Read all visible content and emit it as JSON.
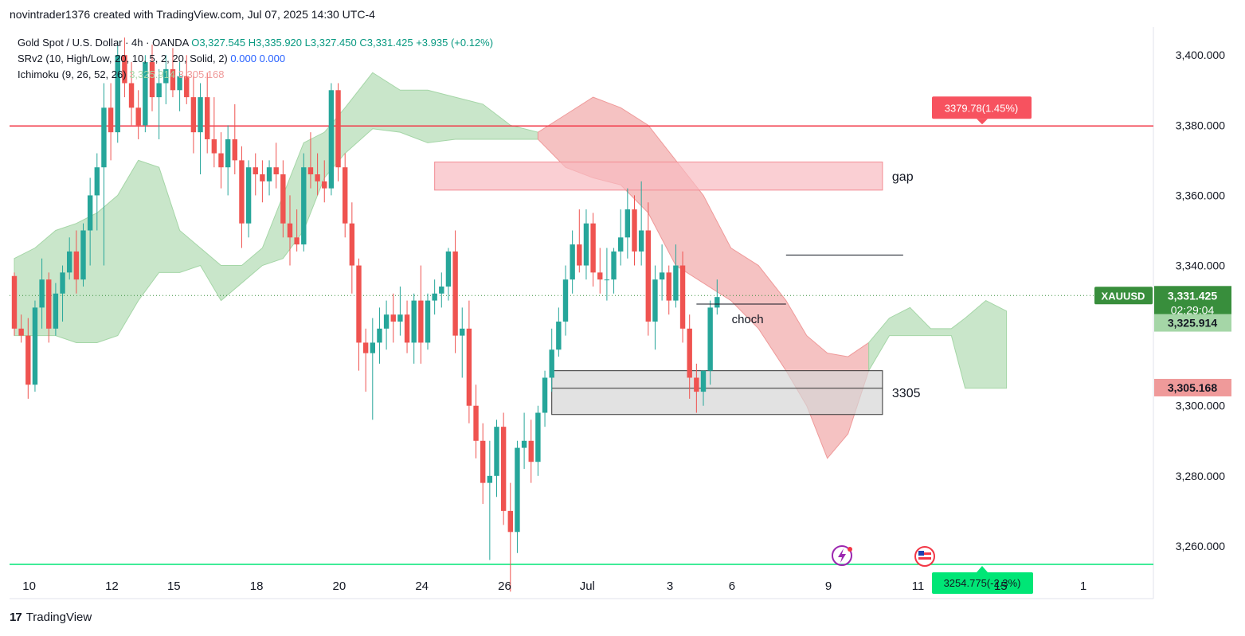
{
  "header": {
    "credit": "novintrader1376 created with TradingView.com, Jul 07, 2025 14:30 UTC-4"
  },
  "legend": {
    "symbol": "Gold Spot / U.S. Dollar · 4h · OANDA",
    "ohlc": {
      "o": "O3,327.545",
      "h": "H3,335.920",
      "l": "L3,327.450",
      "c": "C3,331.425",
      "chg": "+3.935 (+0.12%)"
    },
    "srv2": {
      "label": "SRv2 (10, High/Low, 20, 10, 5, 2, 20, Solid, 2)",
      "v1": "0.000",
      "v2": "0.000"
    },
    "ichimoku": {
      "label": "Ichimoku (9, 26, 52, 26)",
      "v1": "3,325.914",
      "v2": "3,305.168"
    }
  },
  "footer": {
    "brand": "TradingView"
  },
  "colors": {
    "up": "#26a69a",
    "down": "#ef5350",
    "cloud_green": "#a5d6a7",
    "cloud_red": "#ef9a9a",
    "resistance": "#f23645",
    "support": "#00e676"
  },
  "chart_data": {
    "type": "candlestick",
    "symbol_badge": "XAUUSD",
    "y_axis": {
      "ylim": [
        3245,
        3408
      ],
      "ticks": [
        "3,400.000",
        "3,380.000",
        "3,360.000",
        "3,340.000",
        "3,300.000",
        "3,280.000",
        "3,260.000"
      ],
      "tick_values": [
        3400,
        3380,
        3360,
        3340,
        3300,
        3280,
        3260
      ]
    },
    "x_axis": {
      "ticks": [
        "10",
        "12",
        "15",
        "18",
        "20",
        "24",
        "26",
        "Jul",
        "3",
        "6",
        "9",
        "11",
        "15",
        "1"
      ],
      "tick_index": [
        1,
        13,
        22,
        34,
        46,
        58,
        70,
        82,
        94,
        103,
        117,
        130,
        142,
        154
      ]
    },
    "price_labels": [
      {
        "text": "3,331.425",
        "sub": "02:29:04",
        "value": 3331.425,
        "color": "#388e3c"
      },
      {
        "text": "3,325.914",
        "value": 3325.914,
        "color": "#a5d6a7"
      },
      {
        "text": "3,305.168",
        "value": 3305.168,
        "color": "#ef9a9a"
      }
    ],
    "levels": [
      {
        "value": 3379.78,
        "label": "3379.78(1.45%)",
        "color": "#f23645"
      },
      {
        "value": 3254.775,
        "label": "3254.775(-2.3%)",
        "color": "#00e676"
      }
    ],
    "zones": [
      {
        "name": "gap",
        "label": "gap",
        "from": 3361.5,
        "to": 3369.5,
        "x_start": 61,
        "x_end": 126,
        "color": "#f8bbc0"
      },
      {
        "name": "support-zone",
        "label": "3305",
        "from": 3297.5,
        "to": 3310,
        "x_start": 78,
        "x_end": 126,
        "color": "#d6d6d6"
      }
    ],
    "annotations": [
      {
        "label": "choch",
        "x_start": 99,
        "x_end": 112,
        "y": 3329
      },
      {
        "label": "",
        "x_start": 112,
        "x_end": 129,
        "y": 3343
      }
    ],
    "cloud": [
      {
        "color": "green",
        "points": [
          [
            0,
            3320,
            3342
          ],
          [
            3,
            3320,
            3345
          ],
          [
            6,
            3320,
            3350
          ],
          [
            9,
            3318,
            3352
          ],
          [
            12,
            3318,
            3355
          ],
          [
            15,
            3320,
            3360
          ],
          [
            18,
            3330,
            3370
          ],
          [
            21,
            3338,
            3368
          ],
          [
            24,
            3338,
            3350
          ],
          [
            27,
            3340,
            3345
          ],
          [
            30,
            3330,
            3340
          ],
          [
            33,
            3335,
            3340
          ],
          [
            36,
            3340,
            3345
          ],
          [
            39,
            3342,
            3360
          ],
          [
            42,
            3350,
            3375
          ],
          [
            45,
            3365,
            3378
          ],
          [
            48,
            3372,
            3385
          ],
          [
            52,
            3379,
            3395
          ],
          [
            56,
            3378,
            3390
          ],
          [
            60,
            3375,
            3390
          ],
          [
            64,
            3376,
            3388
          ],
          [
            68,
            3376,
            3386
          ],
          [
            72,
            3376,
            3380
          ],
          [
            76,
            3376,
            3378
          ]
        ]
      },
      {
        "color": "red",
        "points": [
          [
            76,
            3376,
            3378
          ],
          [
            80,
            3368,
            3383
          ],
          [
            84,
            3365,
            3388
          ],
          [
            88,
            3363,
            3385
          ],
          [
            92,
            3355,
            3380
          ],
          [
            96,
            3340,
            3370
          ],
          [
            100,
            3335,
            3360
          ],
          [
            104,
            3330,
            3345
          ],
          [
            108,
            3322,
            3340
          ],
          [
            112,
            3310,
            3330
          ],
          [
            115,
            3300,
            3320
          ],
          [
            118,
            3285,
            3315
          ],
          [
            121,
            3292,
            3314
          ],
          [
            124,
            3310,
            3318
          ]
        ]
      },
      {
        "color": "green",
        "points": [
          [
            124,
            3310,
            3318
          ],
          [
            127,
            3320,
            3325
          ],
          [
            130,
            3320,
            3328
          ],
          [
            133,
            3320,
            3322
          ],
          [
            136,
            3320,
            3322
          ],
          [
            138,
            3305,
            3325
          ],
          [
            141,
            3305,
            3330
          ],
          [
            144,
            3305,
            3327
          ]
        ]
      }
    ],
    "candles": [
      {
        "o": 3337,
        "h": 3338,
        "l": 3320,
        "c": 3322
      },
      {
        "o": 3322,
        "h": 3326,
        "l": 3318,
        "c": 3320
      },
      {
        "o": 3320,
        "h": 3325,
        "l": 3302,
        "c": 3306
      },
      {
        "o": 3306,
        "h": 3330,
        "l": 3304,
        "c": 3328
      },
      {
        "o": 3328,
        "h": 3342,
        "l": 3322,
        "c": 3336
      },
      {
        "o": 3336,
        "h": 3338,
        "l": 3318,
        "c": 3322
      },
      {
        "o": 3322,
        "h": 3335,
        "l": 3320,
        "c": 3332
      },
      {
        "o": 3332,
        "h": 3340,
        "l": 3324,
        "c": 3338
      },
      {
        "o": 3338,
        "h": 3348,
        "l": 3336,
        "c": 3344
      },
      {
        "o": 3344,
        "h": 3350,
        "l": 3332,
        "c": 3336
      },
      {
        "o": 3336,
        "h": 3352,
        "l": 3334,
        "c": 3350
      },
      {
        "o": 3350,
        "h": 3365,
        "l": 3340,
        "c": 3360
      },
      {
        "o": 3360,
        "h": 3372,
        "l": 3350,
        "c": 3368
      },
      {
        "o": 3368,
        "h": 3392,
        "l": 3340,
        "c": 3385
      },
      {
        "o": 3385,
        "h": 3392,
        "l": 3370,
        "c": 3378
      },
      {
        "o": 3378,
        "h": 3404,
        "l": 3375,
        "c": 3400
      },
      {
        "o": 3400,
        "h": 3405,
        "l": 3388,
        "c": 3392
      },
      {
        "o": 3392,
        "h": 3398,
        "l": 3380,
        "c": 3385
      },
      {
        "o": 3385,
        "h": 3390,
        "l": 3376,
        "c": 3380
      },
      {
        "o": 3380,
        "h": 3400,
        "l": 3378,
        "c": 3398
      },
      {
        "o": 3398,
        "h": 3403,
        "l": 3384,
        "c": 3388
      },
      {
        "o": 3388,
        "h": 3396,
        "l": 3376,
        "c": 3392
      },
      {
        "o": 3392,
        "h": 3400,
        "l": 3386,
        "c": 3396
      },
      {
        "o": 3396,
        "h": 3402,
        "l": 3388,
        "c": 3390
      },
      {
        "o": 3390,
        "h": 3398,
        "l": 3384,
        "c": 3394
      },
      {
        "o": 3394,
        "h": 3400,
        "l": 3386,
        "c": 3388
      },
      {
        "o": 3388,
        "h": 3395,
        "l": 3372,
        "c": 3378
      },
      {
        "o": 3378,
        "h": 3392,
        "l": 3366,
        "c": 3388
      },
      {
        "o": 3388,
        "h": 3395,
        "l": 3372,
        "c": 3376
      },
      {
        "o": 3376,
        "h": 3388,
        "l": 3368,
        "c": 3372
      },
      {
        "o": 3372,
        "h": 3378,
        "l": 3362,
        "c": 3368
      },
      {
        "o": 3368,
        "h": 3380,
        "l": 3360,
        "c": 3376
      },
      {
        "o": 3376,
        "h": 3386,
        "l": 3366,
        "c": 3370
      },
      {
        "o": 3370,
        "h": 3374,
        "l": 3345,
        "c": 3352
      },
      {
        "o": 3352,
        "h": 3370,
        "l": 3348,
        "c": 3368
      },
      {
        "o": 3368,
        "h": 3372,
        "l": 3360,
        "c": 3366
      },
      {
        "o": 3366,
        "h": 3370,
        "l": 3358,
        "c": 3364
      },
      {
        "o": 3364,
        "h": 3370,
        "l": 3360,
        "c": 3368
      },
      {
        "o": 3368,
        "h": 3375,
        "l": 3362,
        "c": 3366
      },
      {
        "o": 3366,
        "h": 3370,
        "l": 3348,
        "c": 3352
      },
      {
        "o": 3352,
        "h": 3360,
        "l": 3340,
        "c": 3348
      },
      {
        "o": 3348,
        "h": 3356,
        "l": 3344,
        "c": 3346
      },
      {
        "o": 3346,
        "h": 3372,
        "l": 3344,
        "c": 3368
      },
      {
        "o": 3368,
        "h": 3378,
        "l": 3362,
        "c": 3366
      },
      {
        "o": 3366,
        "h": 3372,
        "l": 3360,
        "c": 3364
      },
      {
        "o": 3364,
        "h": 3370,
        "l": 3358,
        "c": 3362
      },
      {
        "o": 3362,
        "h": 3392,
        "l": 3360,
        "c": 3390
      },
      {
        "o": 3390,
        "h": 3392,
        "l": 3364,
        "c": 3368
      },
      {
        "o": 3368,
        "h": 3372,
        "l": 3348,
        "c": 3352
      },
      {
        "o": 3352,
        "h": 3358,
        "l": 3332,
        "c": 3340
      },
      {
        "o": 3340,
        "h": 3342,
        "l": 3310,
        "c": 3318
      },
      {
        "o": 3318,
        "h": 3322,
        "l": 3304,
        "c": 3315
      },
      {
        "o": 3315,
        "h": 3325,
        "l": 3296,
        "c": 3318
      },
      {
        "o": 3318,
        "h": 3328,
        "l": 3312,
        "c": 3322
      },
      {
        "o": 3322,
        "h": 3330,
        "l": 3316,
        "c": 3326
      },
      {
        "o": 3326,
        "h": 3332,
        "l": 3318,
        "c": 3324
      },
      {
        "o": 3324,
        "h": 3334,
        "l": 3320,
        "c": 3326
      },
      {
        "o": 3326,
        "h": 3330,
        "l": 3315,
        "c": 3318
      },
      {
        "o": 3318,
        "h": 3332,
        "l": 3312,
        "c": 3330
      },
      {
        "o": 3330,
        "h": 3340,
        "l": 3312,
        "c": 3318
      },
      {
        "o": 3318,
        "h": 3332,
        "l": 3316,
        "c": 3330
      },
      {
        "o": 3330,
        "h": 3336,
        "l": 3326,
        "c": 3332
      },
      {
        "o": 3332,
        "h": 3338,
        "l": 3328,
        "c": 3334
      },
      {
        "o": 3334,
        "h": 3345,
        "l": 3330,
        "c": 3344
      },
      {
        "o": 3344,
        "h": 3350,
        "l": 3315,
        "c": 3320
      },
      {
        "o": 3320,
        "h": 3328,
        "l": 3308,
        "c": 3322
      },
      {
        "o": 3322,
        "h": 3330,
        "l": 3295,
        "c": 3300
      },
      {
        "o": 3300,
        "h": 3306,
        "l": 3285,
        "c": 3290
      },
      {
        "o": 3290,
        "h": 3295,
        "l": 3272,
        "c": 3278
      },
      {
        "o": 3278,
        "h": 3290,
        "l": 3256,
        "c": 3280
      },
      {
        "o": 3280,
        "h": 3296,
        "l": 3274,
        "c": 3294
      },
      {
        "o": 3294,
        "h": 3298,
        "l": 3266,
        "c": 3270
      },
      {
        "o": 3270,
        "h": 3278,
        "l": 3247,
        "c": 3264
      },
      {
        "o": 3264,
        "h": 3290,
        "l": 3258,
        "c": 3288
      },
      {
        "o": 3288,
        "h": 3298,
        "l": 3282,
        "c": 3290
      },
      {
        "o": 3290,
        "h": 3296,
        "l": 3278,
        "c": 3284
      },
      {
        "o": 3284,
        "h": 3300,
        "l": 3280,
        "c": 3298
      },
      {
        "o": 3298,
        "h": 3310,
        "l": 3294,
        "c": 3308
      },
      {
        "o": 3308,
        "h": 3322,
        "l": 3304,
        "c": 3316
      },
      {
        "o": 3316,
        "h": 3328,
        "l": 3314,
        "c": 3324
      },
      {
        "o": 3324,
        "h": 3340,
        "l": 3320,
        "c": 3336
      },
      {
        "o": 3336,
        "h": 3350,
        "l": 3332,
        "c": 3346
      },
      {
        "o": 3346,
        "h": 3356,
        "l": 3338,
        "c": 3340
      },
      {
        "o": 3340,
        "h": 3356,
        "l": 3336,
        "c": 3352
      },
      {
        "o": 3352,
        "h": 3355,
        "l": 3334,
        "c": 3338
      },
      {
        "o": 3338,
        "h": 3345,
        "l": 3332,
        "c": 3336
      },
      {
        "o": 3336,
        "h": 3345,
        "l": 3330,
        "c": 3336
      },
      {
        "o": 3336,
        "h": 3345,
        "l": 3332,
        "c": 3344
      },
      {
        "o": 3344,
        "h": 3356,
        "l": 3340,
        "c": 3348
      },
      {
        "o": 3348,
        "h": 3362,
        "l": 3342,
        "c": 3356
      },
      {
        "o": 3356,
        "h": 3360,
        "l": 3340,
        "c": 3344
      },
      {
        "o": 3344,
        "h": 3364,
        "l": 3340,
        "c": 3350
      },
      {
        "o": 3350,
        "h": 3358,
        "l": 3320,
        "c": 3324
      },
      {
        "o": 3324,
        "h": 3340,
        "l": 3316,
        "c": 3336
      },
      {
        "o": 3336,
        "h": 3346,
        "l": 3330,
        "c": 3338
      },
      {
        "o": 3338,
        "h": 3340,
        "l": 3326,
        "c": 3330
      },
      {
        "o": 3330,
        "h": 3346,
        "l": 3328,
        "c": 3340
      },
      {
        "o": 3340,
        "h": 3344,
        "l": 3318,
        "c": 3322
      },
      {
        "o": 3322,
        "h": 3326,
        "l": 3302,
        "c": 3308
      },
      {
        "o": 3308,
        "h": 3312,
        "l": 3298,
        "c": 3304
      },
      {
        "o": 3304,
        "h": 3310,
        "l": 3300,
        "c": 3310
      },
      {
        "o": 3310,
        "h": 3330,
        "l": 3306,
        "c": 3328
      },
      {
        "o": 3328,
        "h": 3336,
        "l": 3326,
        "c": 3331
      }
    ]
  }
}
